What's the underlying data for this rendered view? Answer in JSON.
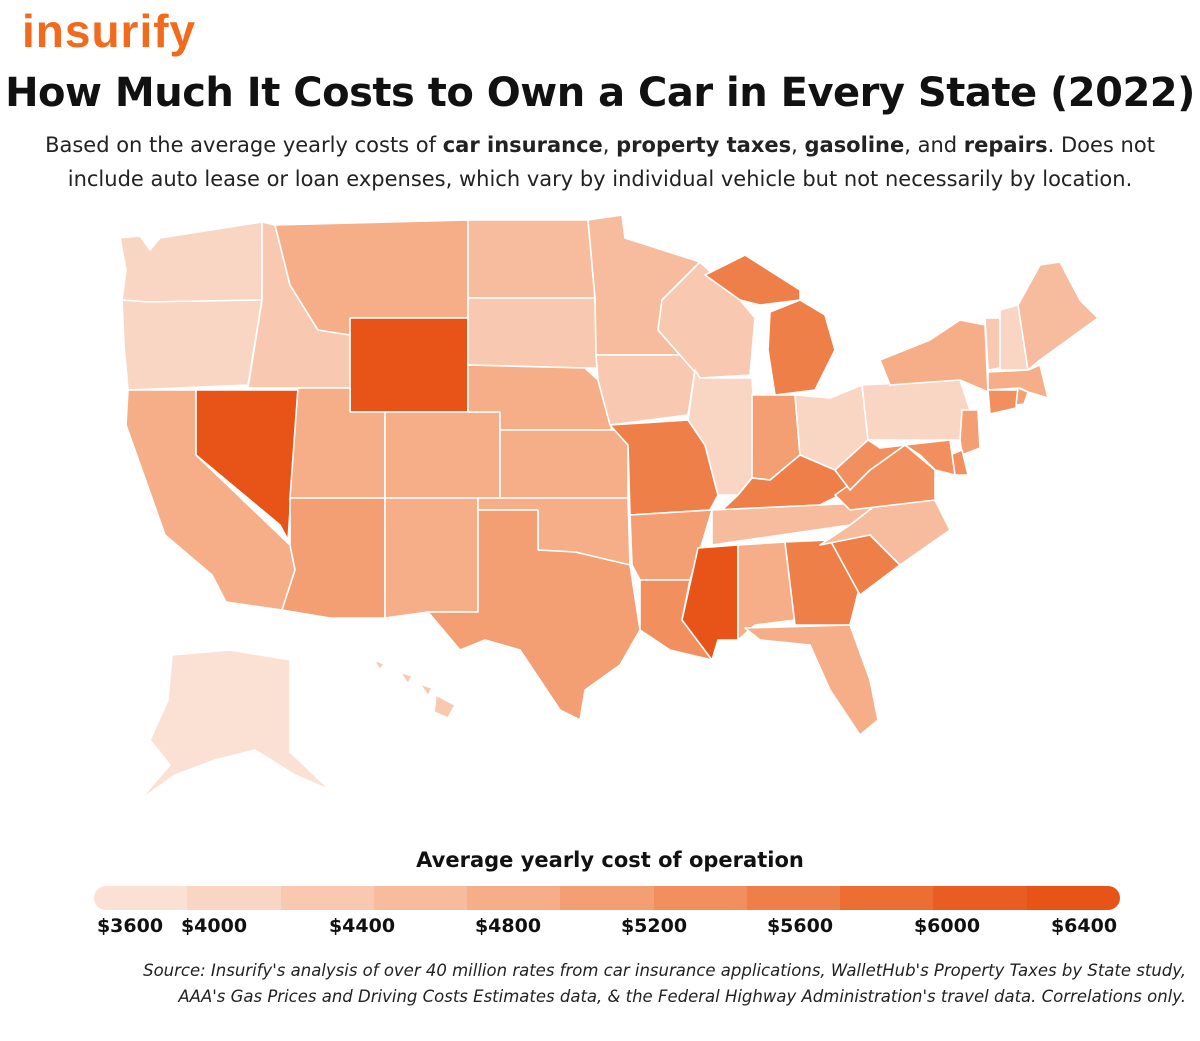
{
  "brand": "insurify",
  "title": "How Much It Costs to Own a Car in Every State (2022)",
  "subtitle": {
    "p1": "Based on the average yearly costs of ",
    "b1": "car insurance",
    "p2": ", ",
    "b2": "property taxes",
    "p3": ", ",
    "b3": "gasoline",
    "p4": ", and ",
    "b4": "repairs",
    "p5": ". Does not include auto lease or loan expenses, which vary by individual vehicle but not necessarily by location."
  },
  "legend": {
    "title": "Average yearly cost of operation",
    "ticks": [
      "$3600",
      "$4000",
      "$4400",
      "$4800",
      "$5200",
      "$5600",
      "$6000",
      "$6400"
    ],
    "colors": [
      "#fbe0d4",
      "#f9d5c3",
      "#f8c9b0",
      "#f6bc9d",
      "#f5ae88",
      "#f39f73",
      "#f1905e",
      "#ef7f48",
      "#ec6e33",
      "#ea5d22",
      "#e85418"
    ]
  },
  "source": "Source: Insurify's analysis of over 40 million rates from car insurance applications, WalletHub's Property Taxes by State study, AAA's Gas Prices and Driving Costs Estimates data, & the Federal Highway Administration's travel data. Correlations only.",
  "state_levels": {
    "WA": 1,
    "OR": 1,
    "CA": 4,
    "NV": 10,
    "ID": 2,
    "MT": 4,
    "WY": 10,
    "UT": 4,
    "AZ": 5,
    "CO": 4,
    "NM": 4,
    "ND": 3,
    "SD": 2,
    "NE": 4,
    "KS": 4,
    "OK": 4,
    "TX": 5,
    "MN": 3,
    "IA": 2,
    "MO": 7,
    "AR": 5,
    "LA": 6,
    "WI": 2,
    "IL": 1,
    "MI": 7,
    "IN": 5,
    "OH": 1,
    "KY": 7,
    "TN": 3,
    "MS": 10,
    "AL": 4,
    "GA": 7,
    "FL": 4,
    "SC": 7,
    "NC": 3,
    "VA": 6,
    "WV": 6,
    "PA": 1,
    "NY": 4,
    "VT": 2,
    "NH": 1,
    "ME": 3,
    "MA": 4,
    "RI": 5,
    "CT": 6,
    "NJ": 5,
    "DE": 6,
    "MD": 6,
    "AK": 0,
    "HI": 2
  }
}
